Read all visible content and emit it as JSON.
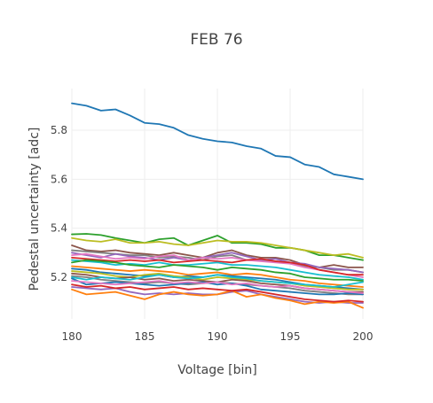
{
  "chart_data": {
    "type": "line",
    "title": "FEB 76",
    "xlabel": "Voltage [bin]",
    "ylabel": "Pedestal uncertainty [adc]",
    "xlim": [
      180,
      200
    ],
    "ylim": [
      5.03,
      5.97
    ],
    "x_ticks": [
      180,
      185,
      190,
      195,
      200
    ],
    "y_ticks": [
      5.2,
      5.4,
      5.6,
      5.8
    ],
    "x_tick_labels": [
      "180",
      "185",
      "190",
      "195",
      "200"
    ],
    "y_tick_labels": [
      "5.2",
      "5.4",
      "5.6",
      "5.8"
    ],
    "grid": true,
    "legend": "none",
    "x": [
      180,
      181,
      182,
      183,
      184,
      185,
      186,
      187,
      188,
      189,
      190,
      191,
      192,
      193,
      194,
      195,
      196,
      197,
      198,
      199,
      200
    ],
    "series": [
      {
        "color": "#1f77b4",
        "values": [
          5.91,
          5.9,
          5.88,
          5.885,
          5.86,
          5.83,
          5.825,
          5.81,
          5.78,
          5.765,
          5.755,
          5.75,
          5.735,
          5.725,
          5.695,
          5.69,
          5.66,
          5.65,
          5.62,
          5.61,
          5.6
        ]
      },
      {
        "color": "#2ca02c",
        "values": [
          5.375,
          5.377,
          5.372,
          5.36,
          5.35,
          5.34,
          5.355,
          5.36,
          5.33,
          5.35,
          5.37,
          5.34,
          5.34,
          5.335,
          5.32,
          5.32,
          5.31,
          5.29,
          5.29,
          5.28,
          5.27
        ]
      },
      {
        "color": "#bcbd22",
        "values": [
          5.36,
          5.35,
          5.345,
          5.355,
          5.34,
          5.34,
          5.345,
          5.335,
          5.33,
          5.34,
          5.35,
          5.345,
          5.345,
          5.34,
          5.33,
          5.32,
          5.31,
          5.3,
          5.29,
          5.295,
          5.28
        ]
      },
      {
        "color": "#8c564b",
        "values": [
          5.33,
          5.31,
          5.305,
          5.31,
          5.3,
          5.295,
          5.29,
          5.3,
          5.29,
          5.28,
          5.3,
          5.31,
          5.29,
          5.28,
          5.28,
          5.27,
          5.25,
          5.24,
          5.25,
          5.24,
          5.24
        ]
      },
      {
        "color": "#7f7f7f",
        "values": [
          5.31,
          5.305,
          5.3,
          5.295,
          5.29,
          5.29,
          5.28,
          5.285,
          5.28,
          5.27,
          5.285,
          5.29,
          5.27,
          5.27,
          5.265,
          5.26,
          5.245,
          5.24,
          5.23,
          5.23,
          5.22
        ]
      },
      {
        "color": "#9467bd",
        "values": [
          5.3,
          5.29,
          5.28,
          5.295,
          5.285,
          5.28,
          5.27,
          5.28,
          5.27,
          5.28,
          5.29,
          5.3,
          5.285,
          5.27,
          5.275,
          5.26,
          5.255,
          5.24,
          5.235,
          5.23,
          5.22
        ]
      },
      {
        "color": "#e377c2",
        "values": [
          5.29,
          5.295,
          5.285,
          5.275,
          5.28,
          5.275,
          5.285,
          5.29,
          5.27,
          5.28,
          5.275,
          5.28,
          5.27,
          5.265,
          5.26,
          5.255,
          5.24,
          5.23,
          5.22,
          5.21,
          5.2
        ]
      },
      {
        "color": "#d62728",
        "values": [
          5.28,
          5.275,
          5.27,
          5.265,
          5.27,
          5.265,
          5.27,
          5.26,
          5.265,
          5.27,
          5.265,
          5.26,
          5.27,
          5.275,
          5.265,
          5.26,
          5.25,
          5.23,
          5.22,
          5.21,
          5.21
        ]
      },
      {
        "color": "#17becf",
        "values": [
          5.27,
          5.265,
          5.26,
          5.25,
          5.255,
          5.25,
          5.26,
          5.25,
          5.25,
          5.255,
          5.26,
          5.25,
          5.25,
          5.245,
          5.24,
          5.23,
          5.22,
          5.21,
          5.205,
          5.2,
          5.19
        ]
      },
      {
        "color": "#2ca02c",
        "values": [
          5.26,
          5.27,
          5.265,
          5.26,
          5.25,
          5.245,
          5.24,
          5.25,
          5.245,
          5.24,
          5.23,
          5.24,
          5.235,
          5.23,
          5.22,
          5.215,
          5.2,
          5.195,
          5.19,
          5.19,
          5.185
        ]
      },
      {
        "color": "#ff7f0e",
        "values": [
          5.245,
          5.24,
          5.235,
          5.23,
          5.225,
          5.23,
          5.225,
          5.22,
          5.21,
          5.215,
          5.22,
          5.21,
          5.215,
          5.21,
          5.2,
          5.19,
          5.185,
          5.175,
          5.17,
          5.165,
          5.16
        ]
      },
      {
        "color": "#1f77b4",
        "values": [
          5.235,
          5.23,
          5.22,
          5.215,
          5.21,
          5.205,
          5.21,
          5.2,
          5.205,
          5.2,
          5.21,
          5.205,
          5.2,
          5.195,
          5.19,
          5.18,
          5.17,
          5.165,
          5.16,
          5.155,
          5.15
        ]
      },
      {
        "color": "#bcbd22",
        "values": [
          5.225,
          5.22,
          5.215,
          5.205,
          5.2,
          5.21,
          5.215,
          5.205,
          5.2,
          5.19,
          5.2,
          5.195,
          5.19,
          5.185,
          5.18,
          5.175,
          5.165,
          5.16,
          5.155,
          5.15,
          5.15
        ]
      },
      {
        "color": "#8c564b",
        "values": [
          5.215,
          5.21,
          5.2,
          5.195,
          5.2,
          5.19,
          5.195,
          5.185,
          5.19,
          5.185,
          5.18,
          5.19,
          5.185,
          5.175,
          5.17,
          5.165,
          5.155,
          5.15,
          5.145,
          5.14,
          5.14
        ]
      },
      {
        "color": "#7f7f7f",
        "values": [
          5.205,
          5.2,
          5.19,
          5.185,
          5.18,
          5.175,
          5.18,
          5.175,
          5.17,
          5.175,
          5.18,
          5.175,
          5.17,
          5.165,
          5.16,
          5.155,
          5.145,
          5.14,
          5.135,
          5.13,
          5.13
        ]
      },
      {
        "color": "#17becf",
        "values": [
          5.2,
          5.19,
          5.2,
          5.195,
          5.19,
          5.2,
          5.21,
          5.2,
          5.195,
          5.2,
          5.21,
          5.2,
          5.195,
          5.185,
          5.18,
          5.175,
          5.17,
          5.165,
          5.16,
          5.17,
          5.18
        ]
      },
      {
        "color": "#1f77b4",
        "values": [
          5.195,
          5.17,
          5.175,
          5.18,
          5.175,
          5.17,
          5.165,
          5.17,
          5.175,
          5.18,
          5.17,
          5.175,
          5.165,
          5.15,
          5.145,
          5.14,
          5.135,
          5.13,
          5.13,
          5.135,
          5.13
        ]
      },
      {
        "color": "#e377c2",
        "values": [
          5.185,
          5.18,
          5.175,
          5.17,
          5.175,
          5.18,
          5.185,
          5.175,
          5.18,
          5.175,
          5.18,
          5.17,
          5.175,
          5.165,
          5.16,
          5.165,
          5.155,
          5.15,
          5.145,
          5.14,
          5.135
        ]
      },
      {
        "color": "#9467bd",
        "values": [
          5.16,
          5.155,
          5.15,
          5.155,
          5.14,
          5.13,
          5.135,
          5.13,
          5.135,
          5.13,
          5.13,
          5.14,
          5.145,
          5.13,
          5.12,
          5.11,
          5.1,
          5.095,
          5.1,
          5.095,
          5.095
        ]
      },
      {
        "color": "#ff7f0e",
        "values": [
          5.15,
          5.13,
          5.135,
          5.14,
          5.125,
          5.11,
          5.13,
          5.14,
          5.13,
          5.125,
          5.13,
          5.145,
          5.12,
          5.13,
          5.115,
          5.105,
          5.09,
          5.1,
          5.095,
          5.1,
          5.075
        ]
      },
      {
        "color": "#d62728",
        "values": [
          5.17,
          5.16,
          5.165,
          5.155,
          5.16,
          5.15,
          5.155,
          5.16,
          5.15,
          5.155,
          5.15,
          5.145,
          5.15,
          5.14,
          5.13,
          5.12,
          5.11,
          5.105,
          5.1,
          5.105,
          5.1
        ]
      }
    ]
  }
}
